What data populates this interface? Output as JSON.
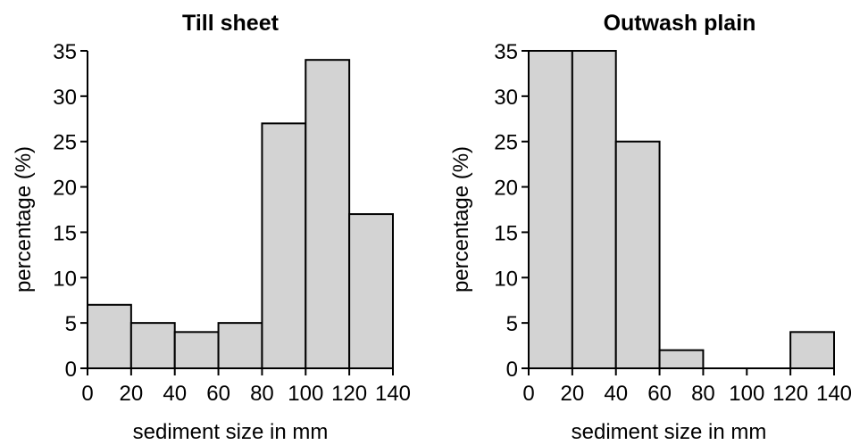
{
  "chart_data": [
    {
      "type": "bar",
      "title": "Till sheet",
      "xlabel": "sediment size in mm",
      "ylabel": "percentage (%)",
      "xlim": [
        0,
        140
      ],
      "ylim": [
        0,
        35
      ],
      "xticks": [
        0,
        20,
        40,
        60,
        80,
        100,
        120,
        140
      ],
      "yticks": [
        0,
        5,
        10,
        15,
        20,
        25,
        30,
        35
      ],
      "bin_edges": [
        0,
        20,
        40,
        60,
        80,
        100,
        120,
        140
      ],
      "values": [
        7,
        5,
        4,
        5,
        27,
        34,
        17
      ],
      "bar_color": "#d3d3d3",
      "grid": false
    },
    {
      "type": "bar",
      "title": "Outwash plain",
      "xlabel": "sediment size in mm",
      "ylabel": "percentage (%)",
      "xlim": [
        0,
        140
      ],
      "ylim": [
        0,
        35
      ],
      "xticks": [
        0,
        20,
        40,
        60,
        80,
        100,
        120,
        140
      ],
      "yticks": [
        0,
        5,
        10,
        15,
        20,
        25,
        30,
        35
      ],
      "bin_edges": [
        0,
        20,
        40,
        60,
        80,
        100,
        120,
        140
      ],
      "values": [
        35,
        35,
        25,
        2,
        0,
        0,
        4
      ],
      "bar_color": "#d3d3d3",
      "grid": false
    }
  ]
}
